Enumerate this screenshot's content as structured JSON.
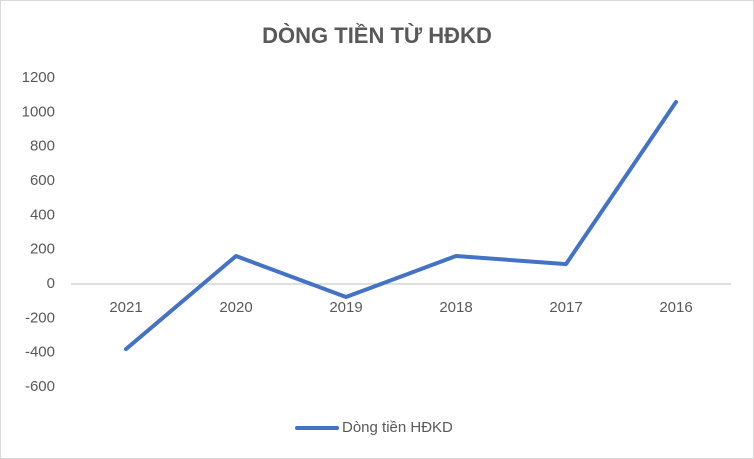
{
  "chart_data": {
    "type": "line",
    "title": "DÒNG TIỀN TỪ HĐKD",
    "categories": [
      "2021",
      "2020",
      "2019",
      "2018",
      "2017",
      "2016"
    ],
    "series": [
      {
        "name": "Dòng tiền HĐKD",
        "color": "#4472c4",
        "values": [
          -379,
          163,
          -76,
          163,
          116,
          1060
        ]
      }
    ],
    "ylim": [
      -600,
      1200
    ],
    "yticks": [
      -600,
      -400,
      -200,
      0,
      200,
      400,
      600,
      800,
      1000,
      1200
    ],
    "grid": false,
    "legend": "bottom"
  }
}
